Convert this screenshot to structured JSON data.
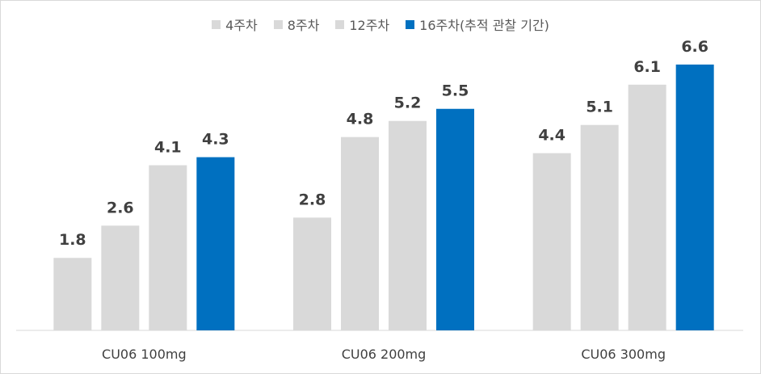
{
  "chart_data": {
    "type": "bar",
    "categories": [
      "CU06 100mg",
      "CU06 200mg",
      "CU06 300mg"
    ],
    "series": [
      {
        "name": "4주차",
        "values": [
          1.8,
          2.8,
          4.4
        ],
        "color": "#d9d9d9"
      },
      {
        "name": "8주차",
        "values": [
          2.6,
          4.8,
          5.1
        ],
        "color": "#d9d9d9"
      },
      {
        "name": "12주차",
        "values": [
          4.1,
          5.2,
          6.1
        ],
        "color": "#d9d9d9"
      },
      {
        "name": "16주차(추적 관찰 기간)",
        "values": [
          4.3,
          5.5,
          6.6
        ],
        "color": "#0070c0"
      }
    ],
    "ylim": [
      0,
      7.4
    ],
    "grid": false,
    "legend_position": "top"
  }
}
